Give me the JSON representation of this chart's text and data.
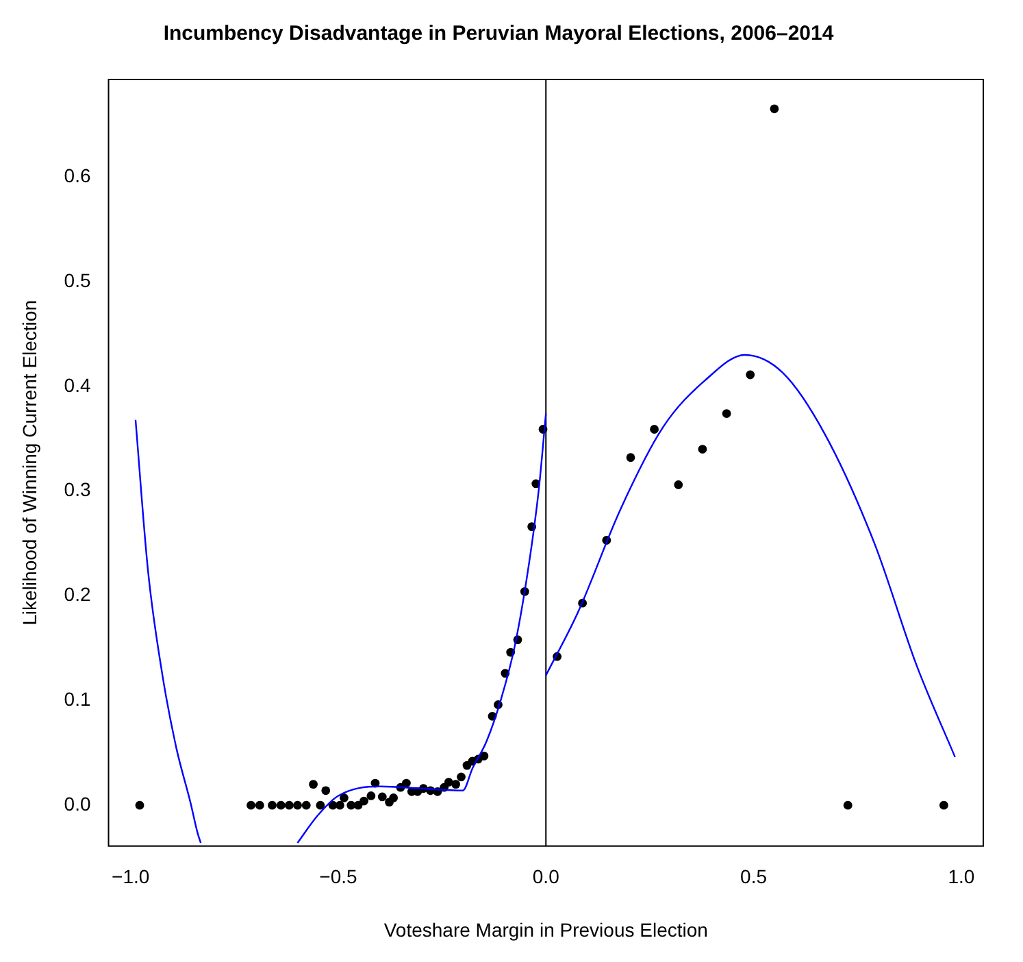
{
  "chart_data": {
    "type": "scatter",
    "title": "Incumbency Disadvantage in Peruvian Mayoral Elections, 2006–2014",
    "xlabel": "Voteshare Margin in Previous Election",
    "ylabel": "Likelihood of Winning Current Election",
    "xlim": [
      -1.053,
      1.053
    ],
    "ylim": [
      -0.039,
      0.693
    ],
    "xticks": [
      {
        "value": -1,
        "label": "−1.0"
      },
      {
        "value": -0.5,
        "label": "−0.5"
      },
      {
        "value": 0,
        "label": "0.0"
      },
      {
        "value": 0.5,
        "label": "0.5"
      },
      {
        "value": 1,
        "label": "1.0"
      }
    ],
    "yticks": [
      {
        "value": 0,
        "label": "0.0"
      },
      {
        "value": 0.1,
        "label": "0.1"
      },
      {
        "value": 0.2,
        "label": "0.2"
      },
      {
        "value": 0.3,
        "label": "0.3"
      },
      {
        "value": 0.4,
        "label": "0.4"
      },
      {
        "value": 0.5,
        "label": "0.5"
      },
      {
        "value": 0.6,
        "label": "0.6"
      }
    ],
    "grid": false,
    "legend": false,
    "marker": "circle",
    "ref_lines": [
      {
        "axis": "x",
        "value": 0,
        "color": "#000000"
      }
    ],
    "series": [
      {
        "color": "#000000",
        "x": [
          -0.978,
          -0.71,
          -0.689,
          -0.659,
          -0.638,
          -0.618,
          -0.598,
          -0.577,
          -0.56,
          -0.543,
          -0.53,
          -0.513,
          -0.496,
          -0.486,
          -0.469,
          -0.452,
          -0.438,
          -0.421,
          -0.411,
          -0.394,
          -0.377,
          -0.367,
          -0.35,
          -0.336,
          -0.323,
          -0.309,
          -0.295,
          -0.278,
          -0.261,
          -0.245,
          -0.234,
          -0.217,
          -0.204,
          -0.19,
          -0.177,
          -0.163,
          -0.149,
          -0.129,
          -0.115,
          -0.098,
          -0.085,
          -0.068,
          -0.051,
          -0.034,
          -0.024,
          -0.007,
          0.027,
          0.088,
          0.146,
          0.204,
          0.261,
          0.319,
          0.377,
          0.435,
          0.492,
          0.55,
          0.727,
          0.958
        ],
        "values": [
          0,
          0,
          0,
          0,
          0,
          0,
          0,
          0,
          0.02,
          0,
          0.014,
          0,
          0,
          0.007,
          0,
          0,
          0.004,
          0.009,
          0.021,
          0.008,
          0.003,
          0.007,
          0.017,
          0.021,
          0.013,
          0.013,
          0.016,
          0.014,
          0.013,
          0.017,
          0.022,
          0.02,
          0.027,
          0.038,
          0.042,
          0.044,
          0.047,
          0.085,
          0.096,
          0.126,
          0.146,
          0.158,
          0.204,
          0.266,
          0.307,
          0.359,
          0.142,
          0.193,
          0.253,
          0.332,
          0.359,
          0.306,
          0.34,
          0.374,
          0.411,
          0.665,
          0,
          0
        ]
      },
      {
        "type": "line",
        "color": "#0000ff",
        "marker": "none",
        "x": [
          -0.988,
          -0.958,
          -0.924,
          -0.89,
          -0.856,
          -0.839,
          -0.831,
          -0.7,
          -0.598,
          -0.55,
          -0.5,
          -0.4,
          -0.3,
          -0.2,
          -0.177,
          -0.143,
          -0.109,
          -0.075,
          -0.041,
          -0.017,
          0
        ],
        "values": [
          0.368,
          0.224,
          0.126,
          0.055,
          0.003,
          -0.026,
          -0.036,
          null,
          -0.036,
          -0.01,
          0.009,
          0.018,
          0.016,
          0.014,
          0.035,
          0.061,
          0.1,
          0.152,
          0.23,
          0.302,
          0.374
        ]
      },
      {
        "type": "line",
        "color": "#0000ff",
        "marker": "none",
        "x": [
          0,
          0.078,
          0.18,
          0.282,
          0.384,
          0.479,
          0.57,
          0.672,
          0.791,
          0.893,
          0.985
        ],
        "values": [
          0.124,
          0.185,
          0.283,
          0.361,
          0.406,
          0.43,
          0.413,
          0.354,
          0.25,
          0.133,
          0.046
        ]
      }
    ]
  }
}
